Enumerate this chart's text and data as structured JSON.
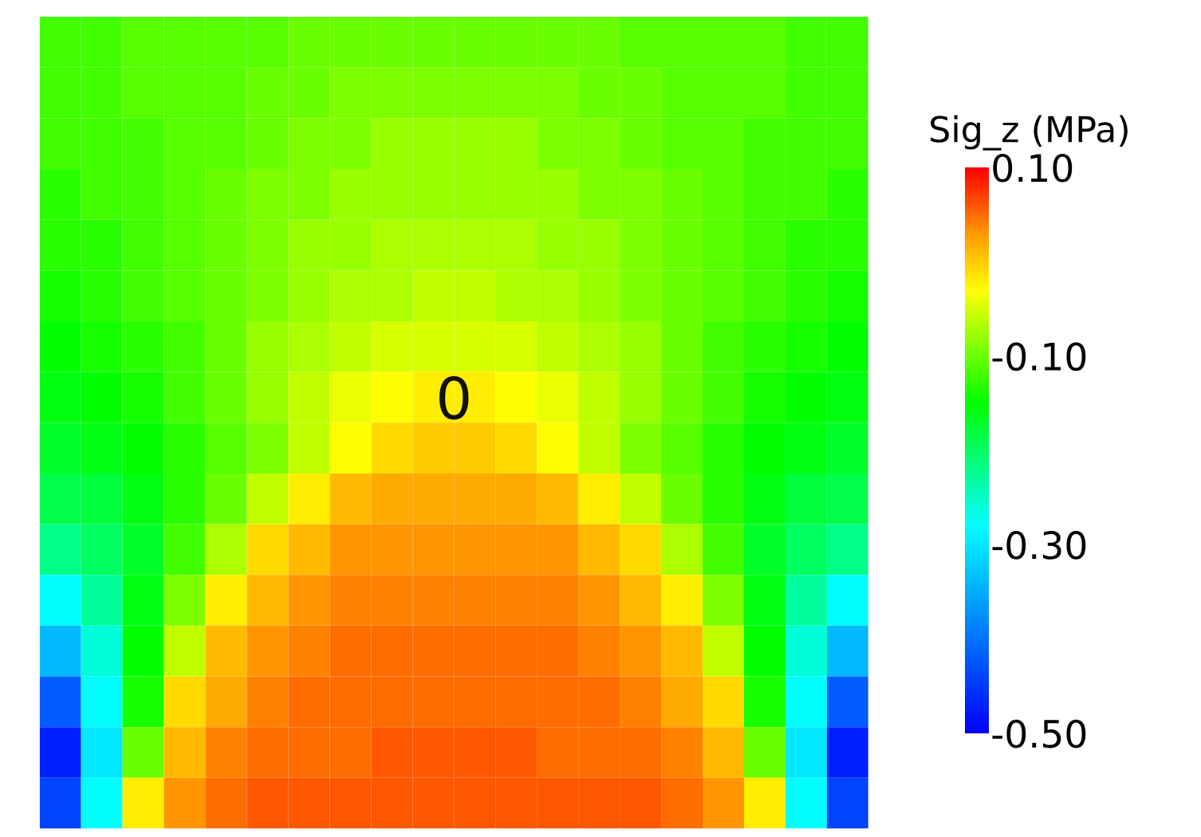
{
  "chart_data": {
    "type": "heatmap",
    "categories": [
      null,
      null,
      null,
      null,
      null,
      null,
      null,
      null,
      null,
      null,
      null,
      null,
      null,
      null,
      null,
      null,
      null,
      null,
      null,
      null
    ],
    "y_categories": [
      null,
      null,
      null,
      null,
      null,
      null,
      null,
      null,
      null,
      null,
      null,
      null,
      null,
      null,
      null,
      null
    ],
    "cells": [
      [
        -0.12,
        -0.12,
        -0.11,
        -0.11,
        -0.11,
        -0.11,
        -0.1,
        -0.1,
        -0.1,
        -0.1,
        -0.1,
        -0.1,
        -0.1,
        -0.1,
        -0.11,
        -0.11,
        -0.11,
        -0.11,
        -0.12,
        -0.12
      ],
      [
        -0.12,
        -0.12,
        -0.11,
        -0.11,
        -0.11,
        -0.1,
        -0.1,
        -0.09,
        -0.09,
        -0.09,
        -0.09,
        -0.09,
        -0.09,
        -0.1,
        -0.1,
        -0.11,
        -0.11,
        -0.11,
        -0.12,
        -0.12
      ],
      [
        -0.12,
        -0.12,
        -0.12,
        -0.11,
        -0.11,
        -0.1,
        -0.09,
        -0.09,
        -0.08,
        -0.08,
        -0.08,
        -0.08,
        -0.09,
        -0.09,
        -0.1,
        -0.11,
        -0.11,
        -0.12,
        -0.12,
        -0.12
      ],
      [
        -0.13,
        -0.12,
        -0.12,
        -0.11,
        -0.1,
        -0.09,
        -0.09,
        -0.08,
        -0.08,
        -0.08,
        -0.08,
        -0.08,
        -0.08,
        -0.09,
        -0.09,
        -0.1,
        -0.11,
        -0.12,
        -0.12,
        -0.13
      ],
      [
        -0.13,
        -0.13,
        -0.12,
        -0.11,
        -0.1,
        -0.09,
        -0.08,
        -0.08,
        -0.07,
        -0.07,
        -0.07,
        -0.07,
        -0.08,
        -0.08,
        -0.09,
        -0.1,
        -0.11,
        -0.12,
        -0.13,
        -0.13
      ],
      [
        -0.14,
        -0.13,
        -0.12,
        -0.11,
        -0.1,
        -0.09,
        -0.08,
        -0.07,
        -0.07,
        -0.06,
        -0.06,
        -0.07,
        -0.07,
        -0.08,
        -0.09,
        -0.1,
        -0.11,
        -0.12,
        -0.13,
        -0.14
      ],
      [
        -0.15,
        -0.14,
        -0.13,
        -0.12,
        -0.1,
        -0.08,
        -0.07,
        -0.06,
        -0.05,
        -0.05,
        -0.05,
        -0.05,
        -0.06,
        -0.07,
        -0.08,
        -0.1,
        -0.12,
        -0.13,
        -0.14,
        -0.15
      ],
      [
        -0.16,
        -0.15,
        -0.14,
        -0.12,
        -0.1,
        -0.08,
        -0.06,
        -0.04,
        -0.03,
        -0.02,
        -0.02,
        -0.03,
        -0.04,
        -0.06,
        -0.08,
        -0.1,
        -0.12,
        -0.14,
        -0.15,
        -0.16
      ],
      [
        -0.17,
        -0.16,
        -0.15,
        -0.13,
        -0.11,
        -0.09,
        -0.06,
        -0.03,
        -0.01,
        0.0,
        0.0,
        -0.01,
        -0.03,
        -0.06,
        -0.09,
        -0.11,
        -0.13,
        -0.15,
        -0.16,
        -0.17
      ],
      [
        -0.19,
        -0.18,
        -0.16,
        -0.13,
        -0.1,
        -0.06,
        -0.02,
        0.01,
        0.02,
        0.02,
        0.02,
        0.02,
        0.01,
        -0.02,
        -0.06,
        -0.1,
        -0.13,
        -0.16,
        -0.18,
        -0.19
      ],
      [
        -0.22,
        -0.2,
        -0.17,
        -0.12,
        -0.07,
        -0.01,
        0.01,
        0.03,
        0.03,
        0.03,
        0.03,
        0.03,
        0.03,
        0.01,
        -0.01,
        -0.07,
        -0.12,
        -0.17,
        -0.2,
        -0.22
      ],
      [
        -0.28,
        -0.23,
        -0.16,
        -0.09,
        -0.02,
        0.01,
        0.03,
        0.04,
        0.04,
        0.04,
        0.04,
        0.04,
        0.04,
        0.03,
        0.01,
        -0.02,
        -0.09,
        -0.16,
        -0.23,
        -0.28
      ],
      [
        -0.34,
        -0.26,
        -0.15,
        -0.06,
        0.01,
        0.03,
        0.04,
        0.05,
        0.05,
        0.05,
        0.05,
        0.05,
        0.05,
        0.04,
        0.03,
        0.01,
        -0.06,
        -0.15,
        -0.26,
        -0.34
      ],
      [
        -0.42,
        -0.28,
        -0.14,
        -0.01,
        0.02,
        0.04,
        0.05,
        0.05,
        0.05,
        0.05,
        0.05,
        0.05,
        0.05,
        0.05,
        0.04,
        0.02,
        -0.01,
        -0.14,
        -0.28,
        -0.42
      ],
      [
        -0.47,
        -0.3,
        -0.1,
        0.01,
        0.04,
        0.05,
        0.05,
        0.05,
        0.06,
        0.06,
        0.06,
        0.06,
        0.05,
        0.05,
        0.05,
        0.04,
        0.01,
        -0.1,
        -0.3,
        -0.47
      ],
      [
        -0.44,
        -0.28,
        -0.02,
        0.03,
        0.05,
        0.06,
        0.06,
        0.06,
        0.06,
        0.06,
        0.06,
        0.06,
        0.06,
        0.06,
        0.06,
        0.05,
        0.03,
        -0.02,
        -0.28,
        -0.44
      ]
    ],
    "clabel": "Sig_z (MPa)",
    "clim": [
      -0.5,
      0.1
    ],
    "cticks": [
      {
        "value": -0.5,
        "label": "-0.50"
      },
      {
        "value": -0.3,
        "label": "-0.30"
      },
      {
        "value": -0.1,
        "label": "-0.10"
      },
      {
        "value": 0.1,
        "label": "0.10"
      }
    ],
    "annotations": [
      "0"
    ],
    "tick_labels": false
  }
}
